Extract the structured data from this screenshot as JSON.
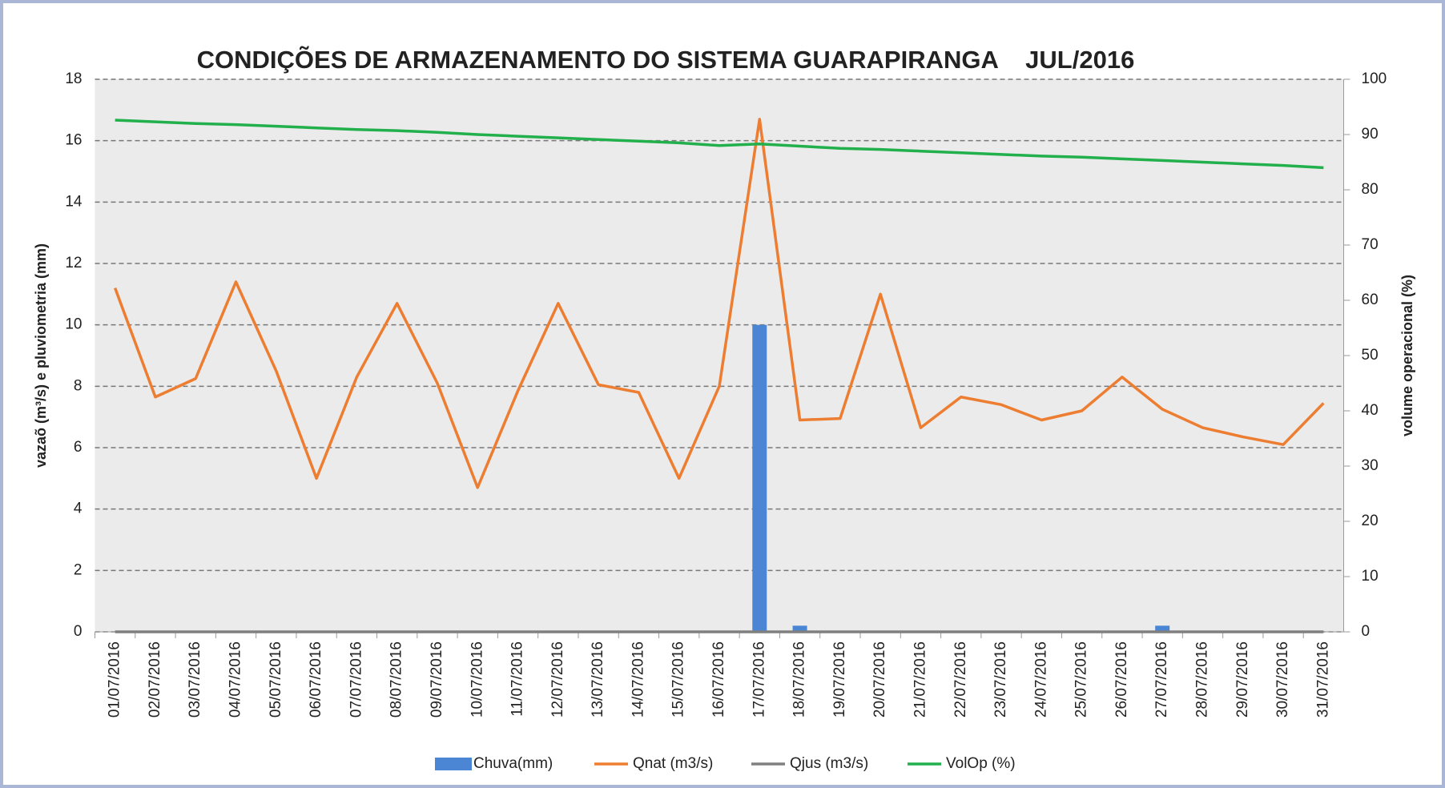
{
  "chart_data": {
    "type": "bar_line",
    "title": "CONDIÇÕES DE ARMAZENAMENTO DO SISTEMA GUARAPIRANGA    JUL/2016",
    "y_label": "vazaõ (m³/s) e pluviometria (mm)",
    "y2_label": "volume operacional (%)",
    "categories": [
      "01/07/2016",
      "02/07/2016",
      "03/07/2016",
      "04/07/2016",
      "05/07/2016",
      "06/07/2016",
      "07/07/2016",
      "08/07/2016",
      "09/07/2016",
      "10/07/2016",
      "11/07/2016",
      "12/07/2016",
      "13/07/2016",
      "14/07/2016",
      "15/07/2016",
      "16/07/2016",
      "17/07/2016",
      "18/07/2016",
      "19/07/2016",
      "20/07/2016",
      "21/07/2016",
      "22/07/2016",
      "23/07/2016",
      "24/07/2016",
      "25/07/2016",
      "26/07/2016",
      "27/07/2016",
      "28/07/2016",
      "29/07/2016",
      "30/07/2016",
      "31/07/2016"
    ],
    "series": [
      {
        "name": "Chuva(mm)",
        "type": "bar",
        "color": "#4a86d4",
        "values": [
          0,
          0,
          0,
          0,
          0,
          0,
          0,
          0,
          0,
          0,
          0,
          0,
          0,
          0,
          0,
          0,
          10,
          0.2,
          0,
          0,
          0,
          0,
          0,
          0,
          0,
          0,
          0.2,
          0,
          0,
          0,
          0
        ]
      },
      {
        "name": "Qnat (m3/s)",
        "type": "line",
        "color": "#ed7d31",
        "values": [
          11.2,
          7.65,
          8.25,
          11.4,
          8.5,
          5.0,
          8.3,
          10.7,
          8.1,
          4.7,
          7.85,
          10.7,
          8.05,
          7.8,
          5.0,
          8.0,
          16.7,
          6.9,
          6.95,
          11.0,
          6.65,
          7.65,
          7.4,
          6.9,
          7.2,
          8.3,
          7.25,
          6.65,
          6.35,
          6.1,
          7.45
        ]
      },
      {
        "name": "Qjus (m3/s)",
        "type": "line",
        "color": "#808080",
        "values": [
          0,
          0,
          0,
          0,
          0,
          0,
          0,
          0,
          0,
          0,
          0,
          0,
          0,
          0,
          0,
          0,
          0,
          0,
          0,
          0,
          0,
          0,
          0,
          0,
          0,
          0,
          0,
          0,
          0,
          0,
          0
        ]
      },
      {
        "name": "VolOp (%)",
        "type": "line",
        "axis": "y2",
        "color": "#21b04b",
        "values": [
          92.6,
          92.3,
          92.0,
          91.8,
          91.5,
          91.2,
          90.9,
          90.7,
          90.4,
          90.0,
          89.7,
          89.4,
          89.1,
          88.8,
          88.5,
          88.0,
          88.3,
          87.9,
          87.5,
          87.3,
          87.0,
          86.7,
          86.4,
          86.1,
          85.9,
          85.6,
          85.3,
          85.0,
          84.7,
          84.4,
          84.0
        ]
      }
    ],
    "ylim": [
      0,
      18
    ],
    "yticks": [
      0,
      2,
      4,
      6,
      8,
      10,
      12,
      14,
      16,
      18
    ],
    "y2lim": [
      0,
      100
    ],
    "y2ticks": [
      0,
      10,
      20,
      30,
      40,
      50,
      60,
      70,
      80,
      90,
      100
    ],
    "grid": true,
    "legend": "bottom"
  }
}
